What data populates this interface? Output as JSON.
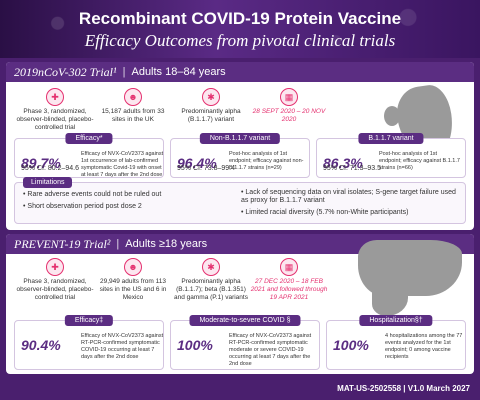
{
  "header": {
    "title": "Recombinant COVID-19 Protein Vaccine",
    "subtitle": "Efficacy Outcomes from pivotal clinical trials"
  },
  "trial1": {
    "name": "2019nCoV-302 Trial¹",
    "ages": "Adults 18–84 years",
    "info": [
      {
        "icon": "pill-icon",
        "text": "Phase 3, randomized, observer-blinded, placebo-controlled trial"
      },
      {
        "icon": "people-icon",
        "text": "15,187 adults from 33 sites in the UK"
      },
      {
        "icon": "virus-icon",
        "text": "Predominantly alpha (B.1.1.7) variant"
      },
      {
        "icon": "calendar-icon",
        "text": "28 SEPT 2020 – 20 NOV 2020"
      }
    ],
    "cards": [
      {
        "label": "Efficacy*",
        "value": "89.7%",
        "desc": "Efficacy of NVX-CoV2373 against 1st occurrence of lab-confirmed symptomatic Covid-19 with onset at least 7 days after the 2nd dose",
        "ci": "95% CI: 80.2–94.6"
      },
      {
        "label": "Non-B.1.1.7 variant",
        "value": "96.4%",
        "desc": "Post-hoc analysis of 1st endpoint; efficacy against non-B.1.1.7 strains (n=29)",
        "ci": "95% CI: 73.8–99.4"
      },
      {
        "label": "B.1.1.7 variant",
        "value": "86.3%",
        "desc": "Post-hoc analysis of 1st endpoint; efficacy against B.1.1.7 strains (n=66)",
        "ci": "95% CI: 71.3–93.5"
      }
    ],
    "limitations": {
      "title": "Limitations",
      "items": [
        "Rare adverse events could not be ruled out",
        "Short observation period post dose 2",
        "Lack of sequencing data on viral isolates; S-gene target failure used as proxy for B.1.1.7 variant",
        "Limited racial diversity (5.7% non-White participants)"
      ]
    }
  },
  "trial2": {
    "name": "PREVENT-19 Trial²",
    "ages": "Adults ≥18 years",
    "info": [
      {
        "icon": "pill-icon",
        "text": "Phase 3, randomized, observer-blinded, placebo-controlled trial"
      },
      {
        "icon": "people-icon",
        "text": "29,949 adults from 113 sites in the US and 6 in Mexico"
      },
      {
        "icon": "virus-icon",
        "text": "Predominantly alpha (B.1.1.7); beta (B.1.351) and gamma (P.1) variants"
      },
      {
        "icon": "calendar-icon",
        "text": "27 DEC 2020 – 18 FEB 2021 and followed through 19 APR 2021"
      }
    ],
    "cards": [
      {
        "label": "Efficacy‡",
        "value": "90.4%",
        "desc": "Efficacy of NVX-CoV2373 against RT-PCR-confirmed symptomatic COVID-19 occurring at least 7 days after the 2nd dose"
      },
      {
        "label": "Moderate-to-severe COVID §",
        "value": "100%",
        "desc": "Efficacy of NVX-CoV2373 against RT-PCR-confirmed symptomatic moderate or severe COVID-19 occurring at least 7 days after the 2nd dose"
      },
      {
        "label": "Hospitalization§†",
        "value": "100%",
        "desc": "4 hospitalizations among the 77 events analyzed for the 1st endpoint; 0 among vaccine recipients"
      }
    ]
  },
  "footer": {
    "code": "MAT-US-2502558 | V1.0 March 2027"
  }
}
